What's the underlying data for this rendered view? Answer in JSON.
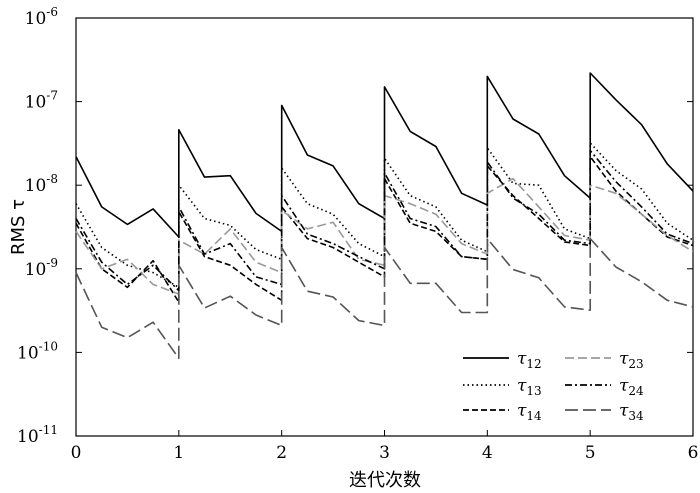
{
  "chart_data": {
    "type": "line",
    "xlabel": "迭代次数",
    "ylabel": "RMS τ",
    "xlim": [
      0,
      6
    ],
    "ylim": [
      1e-11,
      1e-06
    ],
    "yscale": "log",
    "grid": false,
    "legend_position": "bottom-right",
    "x_ticks": [
      "0",
      "1",
      "2",
      "3",
      "4",
      "5",
      "6"
    ],
    "y_ticks": [
      {
        "base": "10",
        "exp": "-11"
      },
      {
        "base": "10",
        "exp": "-10"
      },
      {
        "base": "10",
        "exp": "-9"
      },
      {
        "base": "10",
        "exp": "-8"
      },
      {
        "base": "10",
        "exp": "-7"
      },
      {
        "base": "10",
        "exp": "-6"
      }
    ],
    "series": [
      {
        "name": "τ12",
        "label_base": "τ",
        "label_sub": "12",
        "color": "#000000",
        "dash": "solid",
        "x": [
          0,
          0.25,
          0.5,
          0.75,
          1,
          1,
          1.25,
          1.5,
          1.75,
          2,
          2,
          2.25,
          2.5,
          2.75,
          3,
          3,
          3.25,
          3.5,
          3.75,
          4,
          4,
          4.25,
          4.5,
          4.75,
          5,
          5,
          5.25,
          5.5,
          5.75,
          6
        ],
        "y": [
          2.2e-08,
          5.5e-09,
          3.4e-09,
          5.2e-09,
          2.4e-09,
          4.6e-08,
          1.25e-08,
          1.3e-08,
          4.6e-09,
          2.8e-09,
          9e-08,
          2.3e-08,
          1.7e-08,
          6e-09,
          4e-09,
          1.5e-07,
          4.4e-08,
          2.9e-08,
          8e-09,
          5.8e-09,
          2e-07,
          6.2e-08,
          4.1e-08,
          1.3e-08,
          7e-09,
          2.2e-07,
          1.05e-07,
          5.3e-08,
          1.8e-08,
          8.5e-09
        ]
      },
      {
        "name": "τ13",
        "label_base": "τ",
        "label_sub": "13",
        "color": "#000000",
        "dash": "dotted",
        "x": [
          0,
          0.25,
          0.5,
          0.75,
          1,
          1,
          1.25,
          1.5,
          1.75,
          2,
          2,
          2.25,
          2.5,
          2.75,
          3,
          3,
          3.25,
          3.5,
          3.75,
          4,
          4,
          4.25,
          4.5,
          4.75,
          5,
          5,
          5.25,
          5.5,
          5.75,
          6
        ],
        "y": [
          6e-09,
          1.8e-09,
          1.1e-09,
          9e-10,
          6e-10,
          1e-08,
          4e-09,
          3.3e-09,
          1.7e-09,
          1.3e-09,
          1.6e-08,
          6e-09,
          4.5e-09,
          2e-09,
          1.4e-09,
          2.1e-08,
          7.5e-09,
          5.5e-09,
          2.2e-09,
          1.6e-09,
          2.8e-08,
          1.05e-08,
          1e-08,
          3e-09,
          2.3e-09,
          3.2e-08,
          1.5e-08,
          9e-09,
          3.5e-09,
          2.2e-09
        ]
      },
      {
        "name": "τ14",
        "label_base": "τ",
        "label_sub": "14",
        "color": "#000000",
        "dash": "dashed",
        "x": [
          0,
          0.25,
          0.5,
          0.75,
          1,
          1,
          1.25,
          1.5,
          1.75,
          2,
          2,
          2.25,
          2.5,
          2.75,
          3,
          3,
          3.25,
          3.5,
          3.75,
          4,
          4,
          4.25,
          4.5,
          4.75,
          5,
          5,
          5.25,
          5.5,
          5.75,
          6
        ],
        "y": [
          3.5e-09,
          1e-09,
          6e-10,
          1.25e-09,
          4e-10,
          4.8e-09,
          1.4e-09,
          1.1e-09,
          6.5e-10,
          4.2e-10,
          5.5e-09,
          2.3e-09,
          1.8e-09,
          1.2e-09,
          8e-10,
          1.2e-08,
          3.5e-09,
          2.8e-09,
          1.4e-09,
          1.3e-09,
          1.7e-08,
          7.5e-09,
          4e-09,
          2.1e-09,
          1.9e-09,
          2.2e-08,
          8.5e-09,
          4.5e-09,
          2.4e-09,
          1.9e-09
        ]
      },
      {
        "name": "τ23",
        "label_base": "τ",
        "label_sub": "23",
        "color": "#999999",
        "dash": "dashed-long",
        "x": [
          0,
          0.25,
          0.5,
          0.75,
          1,
          1,
          1.25,
          1.5,
          1.75,
          2,
          2,
          2.25,
          2.5,
          2.75,
          3,
          3,
          3.25,
          3.5,
          3.75,
          4,
          4,
          4.25,
          4.5,
          4.75,
          5,
          5,
          5.25,
          5.5,
          5.75,
          6
        ],
        "y": [
          2.8e-09,
          1e-09,
          1.3e-09,
          6.5e-10,
          5e-10,
          2.2e-09,
          1.5e-09,
          3e-09,
          1.2e-09,
          9e-10,
          5e-09,
          3e-09,
          3.6e-09,
          1.3e-09,
          1.1e-09,
          7.5e-09,
          6e-09,
          4.5e-09,
          2e-09,
          1.5e-09,
          8e-09,
          1.2e-08,
          5.5e-09,
          2.5e-09,
          2.2e-09,
          1e-08,
          8e-09,
          4.5e-09,
          2.5e-09,
          1.6e-09
        ]
      },
      {
        "name": "τ24",
        "label_base": "τ",
        "label_sub": "24",
        "color": "#000000",
        "dash": "dashdot",
        "x": [
          0,
          0.25,
          0.5,
          0.75,
          1,
          1,
          1.25,
          1.5,
          1.75,
          2,
          2,
          2.25,
          2.5,
          2.75,
          3,
          3,
          3.25,
          3.5,
          3.75,
          4,
          4,
          4.25,
          4.5,
          4.75,
          5,
          5,
          5.25,
          5.5,
          5.75,
          6
        ],
        "y": [
          4e-09,
          1.2e-09,
          6.5e-10,
          1.1e-09,
          5.5e-10,
          5.5e-09,
          1.5e-09,
          2e-09,
          8e-10,
          6.5e-10,
          7.5e-09,
          2.6e-09,
          2e-09,
          1.4e-09,
          1e-09,
          1.4e-08,
          4e-09,
          3.2e-09,
          1.4e-09,
          1.3e-09,
          1.9e-08,
          7e-09,
          4.5e-09,
          2.2e-09,
          2e-09,
          2.6e-08,
          1.1e-08,
          5.5e-09,
          2.6e-09,
          2e-09
        ]
      },
      {
        "name": "τ34",
        "label_base": "τ",
        "label_sub": "34",
        "color": "#555555",
        "dash": "dashed-longest",
        "x": [
          0,
          0.25,
          0.5,
          0.75,
          1,
          1,
          1.25,
          1.5,
          1.75,
          2,
          2,
          2.25,
          2.5,
          2.75,
          3,
          3,
          3.25,
          3.5,
          3.75,
          4,
          4,
          4.25,
          4.5,
          4.75,
          5,
          5,
          5.25,
          5.5,
          5.75,
          6
        ],
        "y": [
          9e-10,
          2e-10,
          1.5e-10,
          2.3e-10,
          8.5e-11,
          1.1e-09,
          3.4e-10,
          4.7e-10,
          2.8e-10,
          2.1e-10,
          1.8e-09,
          5.4e-10,
          4.6e-10,
          2.4e-10,
          2.1e-10,
          1.8e-09,
          6.7e-10,
          6.7e-10,
          3e-10,
          3e-10,
          2.3e-09,
          9.8e-10,
          7.8e-10,
          3.5e-10,
          3.2e-10,
          2.3e-09,
          1.05e-09,
          7e-10,
          4.2e-10,
          3.5e-10
        ]
      }
    ]
  }
}
